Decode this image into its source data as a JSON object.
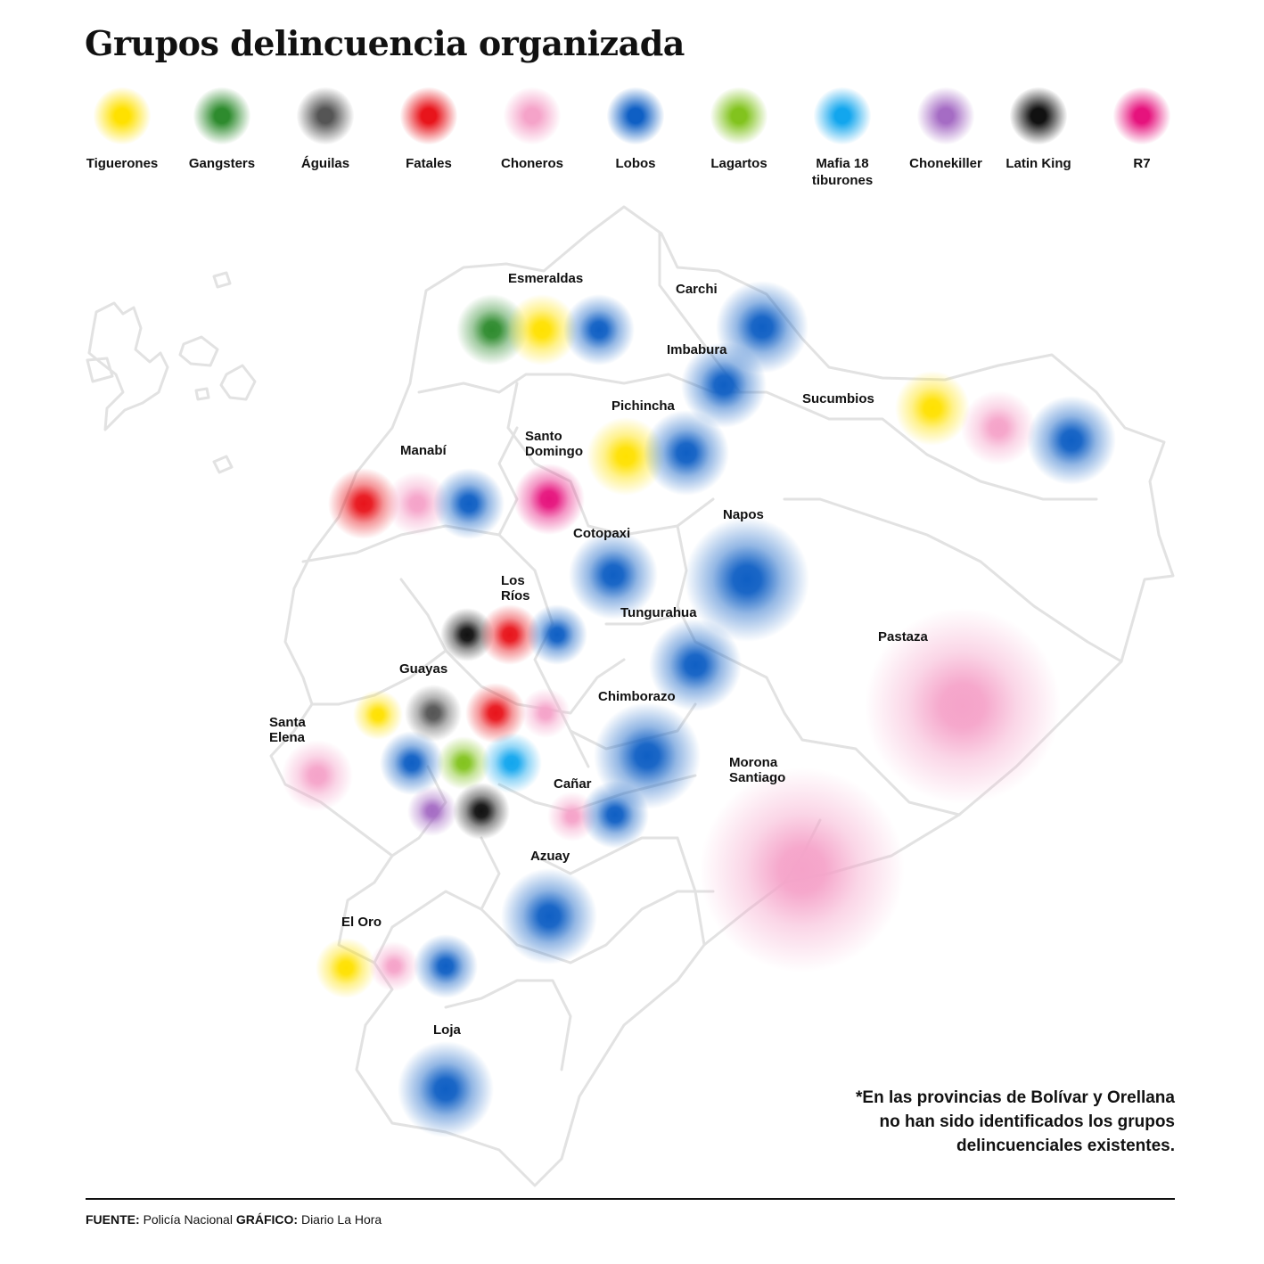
{
  "title": "Grupos delincuencia organizada",
  "colors": {
    "tiguerones": "#ffe100",
    "gangsters": "#2e8b2e",
    "aguilas": "#555555",
    "fatales": "#e8141b",
    "choneros": "#f5a3c9",
    "lobos": "#0f5fc4",
    "lagartos": "#82c31e",
    "mafia18": "#12a6ee",
    "chonekiller": "#a56cc4",
    "latinking": "#111111",
    "r7": "#e6137d",
    "map_outline": "#e2e2e2"
  },
  "legend": [
    {
      "key": "tiguerones",
      "label": "Tiguerones"
    },
    {
      "key": "gangsters",
      "label": "Gangsters"
    },
    {
      "key": "aguilas",
      "label": "Águilas"
    },
    {
      "key": "fatales",
      "label": "Fatales"
    },
    {
      "key": "choneros",
      "label": "Choneros"
    },
    {
      "key": "lobos",
      "label": "Lobos"
    },
    {
      "key": "lagartos",
      "label": "Lagartos"
    },
    {
      "key": "mafia18",
      "label": "Mafia 18\ntiburones"
    },
    {
      "key": "chonekiller",
      "label": "Chonekiller"
    },
    {
      "key": "latinking",
      "label": "Latin King"
    },
    {
      "key": "r7",
      "label": "R7"
    }
  ],
  "provinces": [
    {
      "name": "Esmeraldas",
      "groups": [
        "gangsters",
        "tiguerones",
        "lobos"
      ]
    },
    {
      "name": "Carchi",
      "groups": [
        "lobos"
      ]
    },
    {
      "name": "Imbabura",
      "groups": [
        "lobos"
      ]
    },
    {
      "name": "Sucumbios",
      "groups": [
        "tiguerones",
        "choneros",
        "lobos"
      ]
    },
    {
      "name": "Pichincha",
      "groups": [
        "tiguerones",
        "lobos"
      ]
    },
    {
      "name": "Manabí",
      "groups": [
        "fatales",
        "choneros",
        "lobos"
      ]
    },
    {
      "name": "Santo\nDomingo",
      "groups": [
        "r7"
      ]
    },
    {
      "name": "Napos",
      "groups": [
        "lobos"
      ]
    },
    {
      "name": "Cotopaxi",
      "groups": [
        "lobos"
      ]
    },
    {
      "name": "Los\nRíos",
      "groups": [
        "latinking",
        "fatales",
        "lobos"
      ]
    },
    {
      "name": "Tungurahua",
      "groups": [
        "lobos"
      ]
    },
    {
      "name": "Pastaza",
      "groups": [
        "choneros"
      ]
    },
    {
      "name": "Guayas",
      "groups": [
        "tiguerones",
        "aguilas",
        "fatales",
        "choneros",
        "lobos",
        "lagartos",
        "mafia18",
        "chonekiller",
        "latinking"
      ]
    },
    {
      "name": "Chimborazo",
      "groups": [
        "lobos"
      ]
    },
    {
      "name": "Santa\nElena",
      "groups": [
        "choneros"
      ]
    },
    {
      "name": "Morona\nSantiago",
      "groups": [
        "choneros"
      ]
    },
    {
      "name": "Cañar",
      "groups": [
        "choneros",
        "lobos"
      ]
    },
    {
      "name": "Azuay",
      "groups": [
        "lobos"
      ]
    },
    {
      "name": "El Oro",
      "groups": [
        "tiguerones",
        "choneros",
        "lobos"
      ]
    },
    {
      "name": "Loja",
      "groups": [
        "lobos"
      ]
    }
  ],
  "note": "*En las provincias de Bolívar y Orellana no han sido identificados los grupos delincuenciales existentes.",
  "footer": {
    "source_label": "FUENTE:",
    "source": "Policía Nacional",
    "graphic_label": "GRÁFICO:",
    "graphic": "Diario La Hora"
  }
}
